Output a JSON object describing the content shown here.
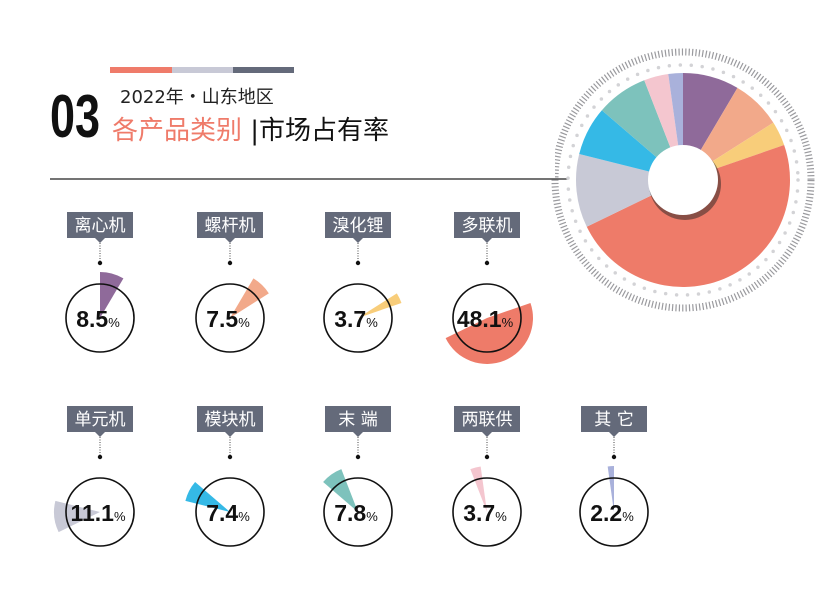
{
  "header": {
    "section_number": "03",
    "subtitle": "2022年・山东地区",
    "title_part1": "各产品类别",
    "title_separator": "|",
    "title_part2": "市场占有率",
    "accent_bar_colors": [
      "#ef7b6a",
      "#c8c9d6",
      "#646a7a"
    ]
  },
  "chart_data": {
    "type": "pie",
    "donut": true,
    "unit": "%",
    "categories": [
      "离心机",
      "螺杆机",
      "溴化锂",
      "多联机",
      "单元机",
      "模块机",
      "末 端",
      "两联供",
      "其 它"
    ],
    "values": [
      8.5,
      7.5,
      3.7,
      48.1,
      11.1,
      7.4,
      7.8,
      3.7,
      2.2
    ],
    "value_labels": [
      "8.5",
      "7.5",
      "3.7",
      "48.1",
      "11.1",
      "7.4",
      "7.8",
      "3.7",
      "2.2"
    ],
    "colors": [
      "#8f6a9a",
      "#f2a98a",
      "#f8cd7a",
      "#ee7b69",
      "#c8c9d6",
      "#35b9e6",
      "#7dc2bc",
      "#f4c6cf",
      "#a9b1db"
    ],
    "direction": "clockwise from top"
  }
}
